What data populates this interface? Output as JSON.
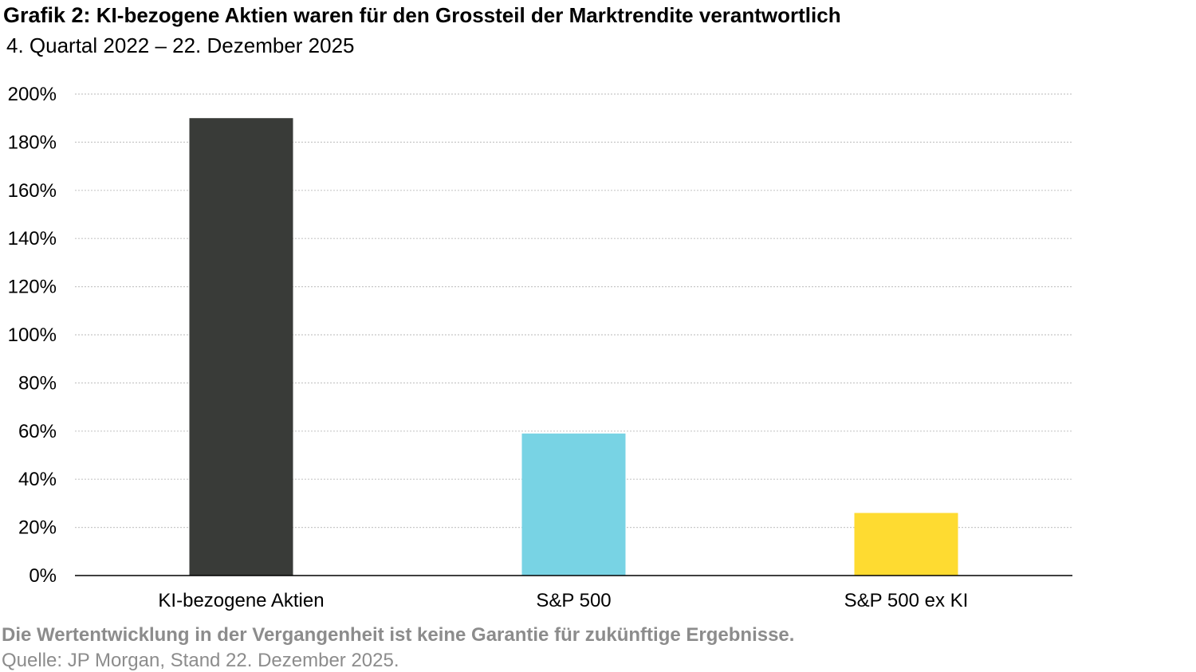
{
  "header": {
    "title_lead": "Grafik 2:",
    "title": "KI-bezogene Aktien waren für den Grossteil der Marktrendite verantwortlich",
    "subtitle": "4. Quartal 2022 – 22. Dezember 2025"
  },
  "chart_data": {
    "type": "bar",
    "title": "KI-bezogene Aktien waren für den Grossteil der Marktrendite verantwortlich",
    "subtitle": "4. Quartal 2022 – 22. Dezember 2025",
    "categories": [
      "KI-bezogene Aktien",
      "S&P 500",
      "S&P 500 ex KI"
    ],
    "values": [
      190,
      59,
      26
    ],
    "colors": [
      "#393b38",
      "#78d3e4",
      "#fedb31"
    ],
    "xlabel": "",
    "ylabel": "",
    "ylim": [
      0,
      200
    ],
    "yticks": [
      "0%",
      "20%",
      "40%",
      "60%",
      "80%",
      "100%",
      "120%",
      "140%",
      "160%",
      "180%",
      "200%"
    ],
    "grid": "horizontal dotted",
    "legend": "none"
  },
  "footer": {
    "note": "Die Wertentwicklung in der Vergangenheit ist keine Garantie für zukünftige Ergebnisse.",
    "source": "Quelle: JP Morgan, Stand 22. Dezember 2025."
  }
}
